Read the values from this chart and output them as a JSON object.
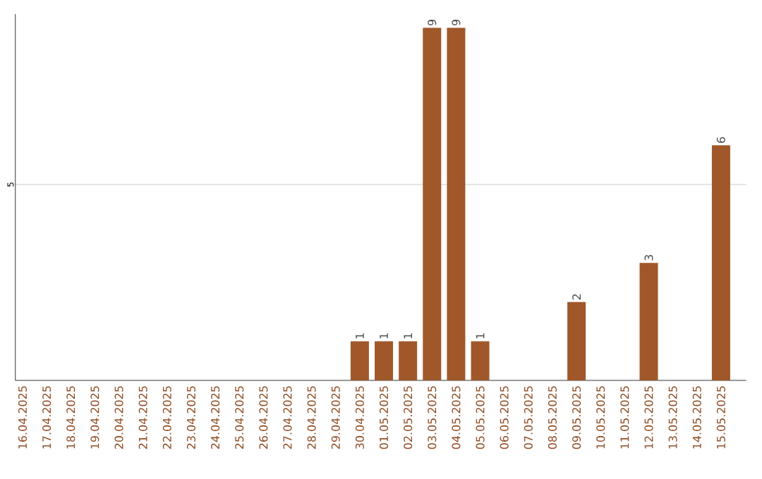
{
  "chart_data": {
    "type": "bar",
    "ylim": [
      0,
      9.35
    ],
    "yticks": [
      5
    ],
    "grid": "y",
    "data_labels": true,
    "categories": [
      "16.04.2025",
      "17.04.2025",
      "18.04.2025",
      "19.04.2025",
      "20.04.2025",
      "21.04.2025",
      "22.04.2025",
      "23.04.2025",
      "24.04.2025",
      "25.04.2025",
      "26.04.2025",
      "27.04.2025",
      "28.04.2025",
      "29.04.2025",
      "30.04.2025",
      "01.05.2025",
      "02.05.2025",
      "03.05.2025",
      "04.05.2025",
      "05.05.2025",
      "06.05.2025",
      "07.05.2025",
      "08.05.2025",
      "09.05.2025",
      "10.05.2025",
      "11.05.2025",
      "12.05.2025",
      "13.05.2025",
      "14.05.2025",
      "15.05.2025"
    ],
    "values": [
      null,
      null,
      null,
      null,
      null,
      null,
      null,
      null,
      null,
      null,
      null,
      null,
      null,
      null,
      1,
      1,
      1,
      9,
      9,
      1,
      null,
      null,
      null,
      2,
      null,
      null,
      3,
      null,
      null,
      6
    ],
    "color": "#a0572a"
  }
}
